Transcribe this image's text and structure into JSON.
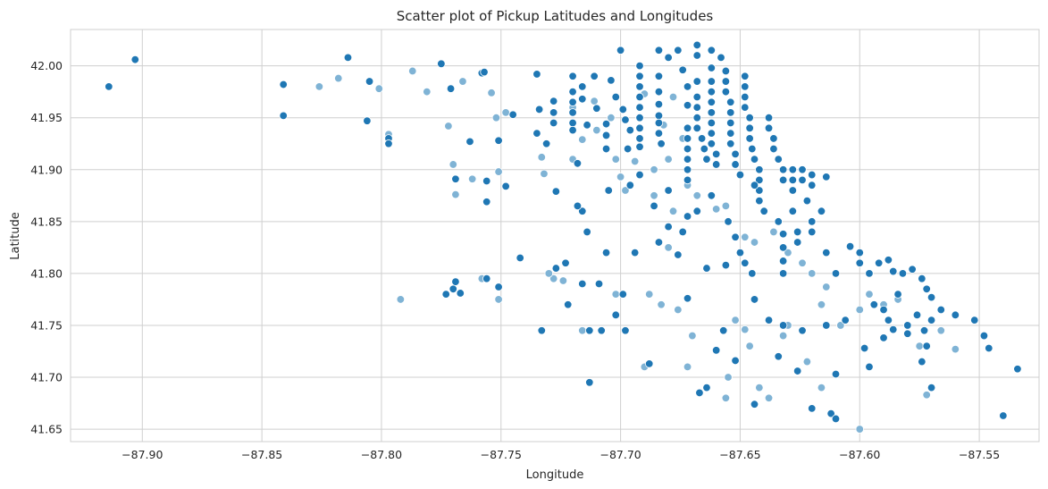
{
  "chart_data": {
    "type": "scatter",
    "title": "Scatter plot of Pickup Latitudes and Longitudes",
    "xlabel": "Longitude",
    "ylabel": "Latitude",
    "xlim": [
      -87.93,
      -87.525
    ],
    "ylim": [
      41.638,
      42.035
    ],
    "xticks": [
      -87.9,
      -87.85,
      -87.8,
      -87.75,
      -87.7,
      -87.65,
      -87.6,
      -87.55
    ],
    "xtick_labels": [
      "−87.90",
      "−87.85",
      "−87.80",
      "−87.75",
      "−87.70",
      "−87.65",
      "−87.60",
      "−87.55"
    ],
    "yticks": [
      41.65,
      41.7,
      41.75,
      41.8,
      41.85,
      41.9,
      41.95,
      42.0
    ],
    "ytick_labels": [
      "41.65",
      "41.70",
      "41.75",
      "41.80",
      "41.85",
      "41.90",
      "41.95",
      "42.00"
    ],
    "grid": true,
    "colors": {
      "dark": "#1f77b4",
      "light": "#7fb3d5"
    },
    "points_dark": [
      [
        -87.914,
        41.98
      ],
      [
        -87.903,
        42.006
      ],
      [
        -87.841,
        41.982
      ],
      [
        -87.841,
        41.952
      ],
      [
        -87.814,
        42.008
      ],
      [
        -87.805,
        41.985
      ],
      [
        -87.806,
        41.947
      ],
      [
        -87.797,
        41.93
      ],
      [
        -87.797,
        41.925
      ],
      [
        -87.775,
        42.002
      ],
      [
        -87.771,
        41.978
      ],
      [
        -87.769,
        41.891
      ],
      [
        -87.769,
        41.792
      ],
      [
        -87.767,
        41.781
      ],
      [
        -87.763,
        41.927
      ],
      [
        -87.758,
        41.993
      ],
      [
        -87.757,
        41.994
      ],
      [
        -87.756,
        41.869
      ],
      [
        -87.756,
        41.889
      ],
      [
        -87.751,
        41.928
      ],
      [
        -87.751,
        41.787
      ],
      [
        -87.748,
        41.884
      ],
      [
        -87.745,
        41.953
      ],
      [
        -87.742,
        41.815
      ],
      [
        -87.735,
        41.992
      ],
      [
        -87.735,
        41.935
      ],
      [
        -87.734,
        41.958
      ],
      [
        -87.731,
        41.925
      ],
      [
        -87.728,
        41.966
      ],
      [
        -87.728,
        41.955
      ],
      [
        -87.728,
        41.945
      ],
      [
        -87.727,
        41.879
      ],
      [
        -87.727,
        41.805
      ],
      [
        -87.723,
        41.81
      ],
      [
        -87.722,
        41.77
      ],
      [
        -87.72,
        41.99
      ],
      [
        -87.72,
        41.975
      ],
      [
        -87.72,
        41.965
      ],
      [
        -87.72,
        41.955
      ],
      [
        -87.72,
        41.945
      ],
      [
        -87.72,
        41.938
      ],
      [
        -87.718,
        41.906
      ],
      [
        -87.716,
        41.98
      ],
      [
        -87.716,
        41.968
      ],
      [
        -87.714,
        41.943
      ],
      [
        -87.711,
        41.99
      ],
      [
        -87.71,
        41.959
      ],
      [
        -87.706,
        41.944
      ],
      [
        -87.706,
        41.933
      ],
      [
        -87.706,
        41.92
      ],
      [
        -87.704,
        41.986
      ],
      [
        -87.702,
        41.97
      ],
      [
        -87.7,
        42.015
      ],
      [
        -87.699,
        41.958
      ],
      [
        -87.698,
        41.948
      ],
      [
        -87.697,
        41.92
      ],
      [
        -87.696,
        41.938
      ],
      [
        -87.692,
        42.0
      ],
      [
        -87.692,
        41.99
      ],
      [
        -87.692,
        41.98
      ],
      [
        -87.692,
        41.97
      ],
      [
        -87.692,
        41.96
      ],
      [
        -87.692,
        41.95
      ],
      [
        -87.692,
        41.94
      ],
      [
        -87.692,
        41.93
      ],
      [
        -87.692,
        41.922
      ],
      [
        -87.684,
        42.015
      ],
      [
        -87.684,
        41.99
      ],
      [
        -87.684,
        41.975
      ],
      [
        -87.684,
        41.963
      ],
      [
        -87.684,
        41.952
      ],
      [
        -87.684,
        41.945
      ],
      [
        -87.684,
        41.935
      ],
      [
        -87.683,
        41.925
      ],
      [
        -87.68,
        42.008
      ],
      [
        -87.676,
        42.015
      ],
      [
        -87.674,
        41.996
      ],
      [
        -87.672,
        41.98
      ],
      [
        -87.672,
        41.962
      ],
      [
        -87.672,
        41.94
      ],
      [
        -87.672,
        41.93
      ],
      [
        -87.672,
        41.92
      ],
      [
        -87.672,
        41.91
      ],
      [
        -87.672,
        41.9
      ],
      [
        -87.672,
        41.89
      ],
      [
        -87.668,
        42.02
      ],
      [
        -87.668,
        42.01
      ],
      [
        -87.668,
        41.985
      ],
      [
        -87.668,
        41.97
      ],
      [
        -87.668,
        41.96
      ],
      [
        -87.668,
        41.95
      ],
      [
        -87.668,
        41.94
      ],
      [
        -87.666,
        41.93
      ],
      [
        -87.665,
        41.92
      ],
      [
        -87.664,
        41.91
      ],
      [
        -87.662,
        42.015
      ],
      [
        -87.662,
        41.998
      ],
      [
        -87.662,
        41.985
      ],
      [
        -87.662,
        41.975
      ],
      [
        -87.662,
        41.965
      ],
      [
        -87.662,
        41.955
      ],
      [
        -87.662,
        41.945
      ],
      [
        -87.662,
        41.935
      ],
      [
        -87.662,
        41.925
      ],
      [
        -87.66,
        41.915
      ],
      [
        -87.66,
        41.905
      ],
      [
        -87.658,
        42.008
      ],
      [
        -87.656,
        41.995
      ],
      [
        -87.656,
        41.985
      ],
      [
        -87.656,
        41.975
      ],
      [
        -87.654,
        41.965
      ],
      [
        -87.654,
        41.955
      ],
      [
        -87.654,
        41.945
      ],
      [
        -87.654,
        41.935
      ],
      [
        -87.654,
        41.925
      ],
      [
        -87.652,
        41.915
      ],
      [
        -87.652,
        41.905
      ],
      [
        -87.65,
        41.895
      ],
      [
        -87.648,
        41.99
      ],
      [
        -87.648,
        41.98
      ],
      [
        -87.648,
        41.97
      ],
      [
        -87.648,
        41.96
      ],
      [
        -87.646,
        41.95
      ],
      [
        -87.646,
        41.94
      ],
      [
        -87.646,
        41.93
      ],
      [
        -87.645,
        41.92
      ],
      [
        -87.644,
        41.91
      ],
      [
        -87.642,
        41.9
      ],
      [
        -87.642,
        41.89
      ],
      [
        -87.642,
        41.88
      ],
      [
        -87.642,
        41.87
      ],
      [
        -87.64,
        41.86
      ],
      [
        -87.638,
        41.95
      ],
      [
        -87.638,
        41.94
      ],
      [
        -87.636,
        41.93
      ],
      [
        -87.636,
        41.92
      ],
      [
        -87.634,
        41.91
      ],
      [
        -87.632,
        41.9
      ],
      [
        -87.632,
        41.89
      ],
      [
        -87.628,
        41.9
      ],
      [
        -87.628,
        41.89
      ],
      [
        -87.628,
        41.88
      ],
      [
        -87.624,
        41.9
      ],
      [
        -87.624,
        41.89
      ],
      [
        -87.62,
        41.895
      ],
      [
        -87.62,
        41.885
      ],
      [
        -87.614,
        41.893
      ],
      [
        -87.634,
        41.85
      ],
      [
        -87.632,
        41.838
      ],
      [
        -87.632,
        41.825
      ],
      [
        -87.632,
        41.812
      ],
      [
        -87.632,
        41.8
      ],
      [
        -87.628,
        41.86
      ],
      [
        -87.626,
        41.84
      ],
      [
        -87.626,
        41.83
      ],
      [
        -87.622,
        41.87
      ],
      [
        -87.62,
        41.85
      ],
      [
        -87.62,
        41.84
      ],
      [
        -87.616,
        41.86
      ],
      [
        -87.614,
        41.82
      ],
      [
        -87.61,
        41.8
      ],
      [
        -87.604,
        41.826
      ],
      [
        -87.6,
        41.82
      ],
      [
        -87.6,
        41.81
      ],
      [
        -87.596,
        41.8
      ],
      [
        -87.592,
        41.81
      ],
      [
        -87.588,
        41.813
      ],
      [
        -87.586,
        41.802
      ],
      [
        -87.584,
        41.78
      ],
      [
        -87.582,
        41.8
      ],
      [
        -87.578,
        41.804
      ],
      [
        -87.574,
        41.795
      ],
      [
        -87.572,
        41.785
      ],
      [
        -87.57,
        41.777
      ],
      [
        -87.594,
        41.77
      ],
      [
        -87.59,
        41.765
      ],
      [
        -87.588,
        41.755
      ],
      [
        -87.58,
        41.75
      ],
      [
        -87.576,
        41.76
      ],
      [
        -87.573,
        41.745
      ],
      [
        -87.57,
        41.755
      ],
      [
        -87.566,
        41.765
      ],
      [
        -87.56,
        41.76
      ],
      [
        -87.552,
        41.755
      ],
      [
        -87.548,
        41.74
      ],
      [
        -87.546,
        41.728
      ],
      [
        -87.534,
        41.708
      ],
      [
        -87.54,
        41.663
      ],
      [
        -87.612,
        41.665
      ],
      [
        -87.61,
        41.66
      ],
      [
        -87.644,
        41.775
      ],
      [
        -87.638,
        41.755
      ],
      [
        -87.632,
        41.75
      ],
      [
        -87.624,
        41.745
      ],
      [
        -87.614,
        41.75
      ],
      [
        -87.606,
        41.755
      ],
      [
        -87.598,
        41.728
      ],
      [
        -87.59,
        41.738
      ],
      [
        -87.586,
        41.746
      ],
      [
        -87.596,
        41.71
      ],
      [
        -87.58,
        41.742
      ],
      [
        -87.574,
        41.715
      ],
      [
        -87.57,
        41.69
      ],
      [
        -87.572,
        41.73
      ],
      [
        -87.61,
        41.703
      ],
      [
        -87.62,
        41.67
      ],
      [
        -87.626,
        41.706
      ],
      [
        -87.634,
        41.72
      ],
      [
        -87.644,
        41.674
      ],
      [
        -87.652,
        41.716
      ],
      [
        -87.657,
        41.745
      ],
      [
        -87.66,
        41.726
      ],
      [
        -87.664,
        41.69
      ],
      [
        -87.667,
        41.685
      ],
      [
        -87.672,
        41.776
      ],
      [
        -87.688,
        41.713
      ],
      [
        -87.698,
        41.745
      ],
      [
        -87.708,
        41.745
      ],
      [
        -87.713,
        41.745
      ],
      [
        -87.713,
        41.695
      ],
      [
        -87.702,
        41.76
      ],
      [
        -87.699,
        41.78
      ],
      [
        -87.709,
        41.79
      ],
      [
        -87.706,
        41.82
      ],
      [
        -87.714,
        41.84
      ],
      [
        -87.716,
        41.86
      ],
      [
        -87.718,
        41.865
      ],
      [
        -87.705,
        41.88
      ],
      [
        -87.696,
        41.885
      ],
      [
        -87.692,
        41.895
      ],
      [
        -87.686,
        41.865
      ],
      [
        -87.684,
        41.83
      ],
      [
        -87.676,
        41.818
      ],
      [
        -87.668,
        41.86
      ],
      [
        -87.662,
        41.875
      ],
      [
        -87.655,
        41.85
      ],
      [
        -87.652,
        41.835
      ],
      [
        -87.65,
        41.82
      ],
      [
        -87.648,
        41.81
      ],
      [
        -87.656,
        41.808
      ],
      [
        -87.664,
        41.805
      ],
      [
        -87.674,
        41.84
      ],
      [
        -87.68,
        41.845
      ],
      [
        -87.68,
        41.88
      ],
      [
        -87.672,
        41.855
      ],
      [
        -87.644,
        41.885
      ],
      [
        -87.645,
        41.8
      ],
      [
        -87.694,
        41.82
      ],
      [
        -87.733,
        41.745
      ],
      [
        -87.716,
        41.79
      ],
      [
        -87.756,
        41.795
      ],
      [
        -87.77,
        41.785
      ],
      [
        -87.773,
        41.78
      ]
    ],
    "points_light": [
      [
        -87.826,
        41.98
      ],
      [
        -87.818,
        41.988
      ],
      [
        -87.801,
        41.978
      ],
      [
        -87.797,
        41.934
      ],
      [
        -87.792,
        41.775
      ],
      [
        -87.787,
        41.995
      ],
      [
        -87.781,
        41.975
      ],
      [
        -87.772,
        41.942
      ],
      [
        -87.77,
        41.905
      ],
      [
        -87.769,
        41.876
      ],
      [
        -87.766,
        41.985
      ],
      [
        -87.762,
        41.891
      ],
      [
        -87.758,
        41.795
      ],
      [
        -87.754,
        41.974
      ],
      [
        -87.752,
        41.95
      ],
      [
        -87.751,
        41.898
      ],
      [
        -87.751,
        41.775
      ],
      [
        -87.748,
        41.955
      ],
      [
        -87.733,
        41.912
      ],
      [
        -87.732,
        41.896
      ],
      [
        -87.728,
        41.795
      ],
      [
        -87.724,
        41.793
      ],
      [
        -87.72,
        41.96
      ],
      [
        -87.72,
        41.91
      ],
      [
        -87.716,
        41.929
      ],
      [
        -87.711,
        41.966
      ],
      [
        -87.71,
        41.938
      ],
      [
        -87.706,
        41.92
      ],
      [
        -87.704,
        41.95
      ],
      [
        -87.702,
        41.91
      ],
      [
        -87.7,
        41.893
      ],
      [
        -87.698,
        41.88
      ],
      [
        -87.694,
        41.908
      ],
      [
        -87.69,
        41.973
      ],
      [
        -87.686,
        41.9
      ],
      [
        -87.686,
        41.875
      ],
      [
        -87.682,
        41.943
      ],
      [
        -87.68,
        41.91
      ],
      [
        -87.678,
        41.97
      ],
      [
        -87.674,
        41.93
      ],
      [
        -87.672,
        41.885
      ],
      [
        -87.668,
        41.875
      ],
      [
        -87.66,
        41.862
      ],
      [
        -87.656,
        41.865
      ],
      [
        -87.648,
        41.835
      ],
      [
        -87.644,
        41.83
      ],
      [
        -87.636,
        41.84
      ],
      [
        -87.63,
        41.82
      ],
      [
        -87.624,
        41.81
      ],
      [
        -87.62,
        41.8
      ],
      [
        -87.616,
        41.77
      ],
      [
        -87.614,
        41.787
      ],
      [
        -87.608,
        41.75
      ],
      [
        -87.6,
        41.765
      ],
      [
        -87.596,
        41.78
      ],
      [
        -87.59,
        41.77
      ],
      [
        -87.584,
        41.775
      ],
      [
        -87.575,
        41.73
      ],
      [
        -87.566,
        41.745
      ],
      [
        -87.56,
        41.727
      ],
      [
        -87.572,
        41.683
      ],
      [
        -87.6,
        41.65
      ],
      [
        -87.616,
        41.69
      ],
      [
        -87.622,
        41.715
      ],
      [
        -87.63,
        41.75
      ],
      [
        -87.632,
        41.74
      ],
      [
        -87.638,
        41.68
      ],
      [
        -87.642,
        41.69
      ],
      [
        -87.646,
        41.73
      ],
      [
        -87.648,
        41.746
      ],
      [
        -87.652,
        41.755
      ],
      [
        -87.655,
        41.7
      ],
      [
        -87.656,
        41.68
      ],
      [
        -87.67,
        41.74
      ],
      [
        -87.672,
        41.71
      ],
      [
        -87.676,
        41.765
      ],
      [
        -87.69,
        41.71
      ],
      [
        -87.702,
        41.78
      ],
      [
        -87.716,
        41.745
      ],
      [
        -87.73,
        41.8
      ],
      [
        -87.683,
        41.77
      ],
      [
        -87.68,
        41.825
      ],
      [
        -87.688,
        41.78
      ],
      [
        -87.678,
        41.86
      ]
    ]
  }
}
